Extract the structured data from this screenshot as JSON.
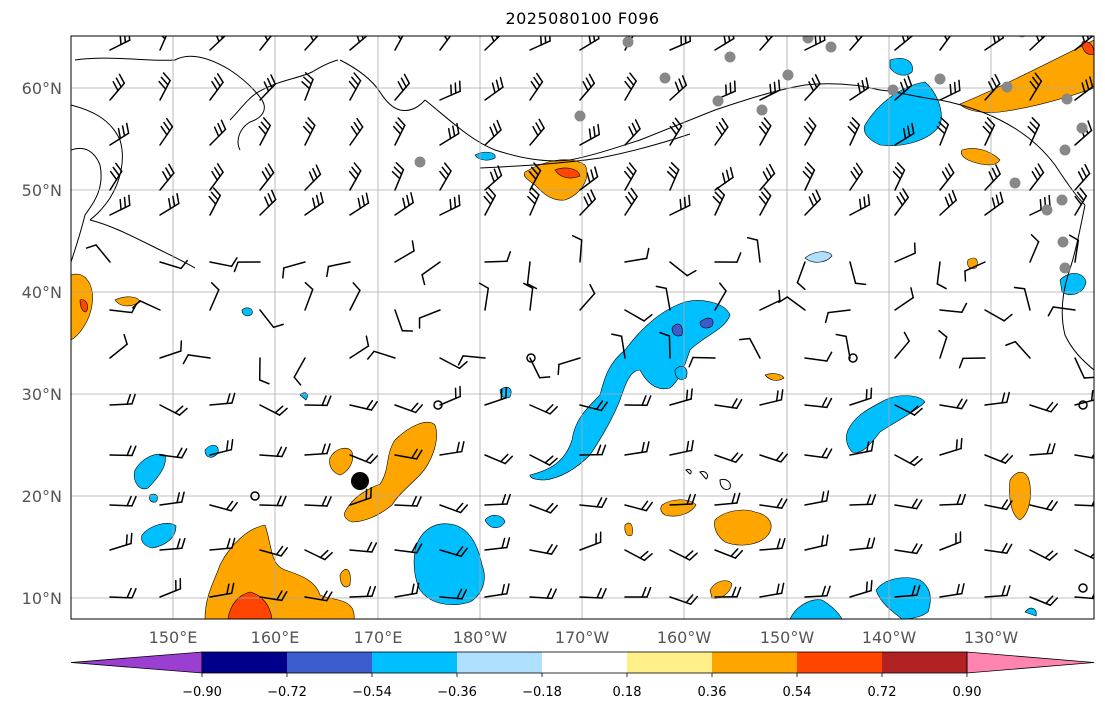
{
  "title": "2025080100 F096",
  "lon_ticks": [
    "150°E",
    "160°E",
    "170°E",
    "180°W",
    "170°W",
    "160°W",
    "150°W",
    "140°W",
    "130°W"
  ],
  "lat_ticks": [
    "60°N",
    "50°N",
    "40°N",
    "30°N",
    "20°N",
    "10°N"
  ],
  "colorbar": {
    "labels": [
      "−0.90",
      "−0.72",
      "−0.54",
      "−0.36",
      "−0.18",
      "0.18",
      "0.36",
      "0.54",
      "0.72",
      "0.90"
    ],
    "colors": {
      "under": "#9a3fd1",
      "bins": [
        "#00008b",
        "#3a5ccc",
        "#00bfff",
        "#b0e0ff",
        "#ffffff",
        "#fff08a",
        "#ffa500",
        "#ff4500",
        "#b22222"
      ],
      "over": "#ff85b0"
    }
  },
  "field_colors": {
    "blue": "#00bfff",
    "orange": "#ffa500",
    "red": "#ff4500",
    "darkblue": "#3a5ccc",
    "lightblue": "#b0e0ff",
    "station": "#888888"
  }
}
